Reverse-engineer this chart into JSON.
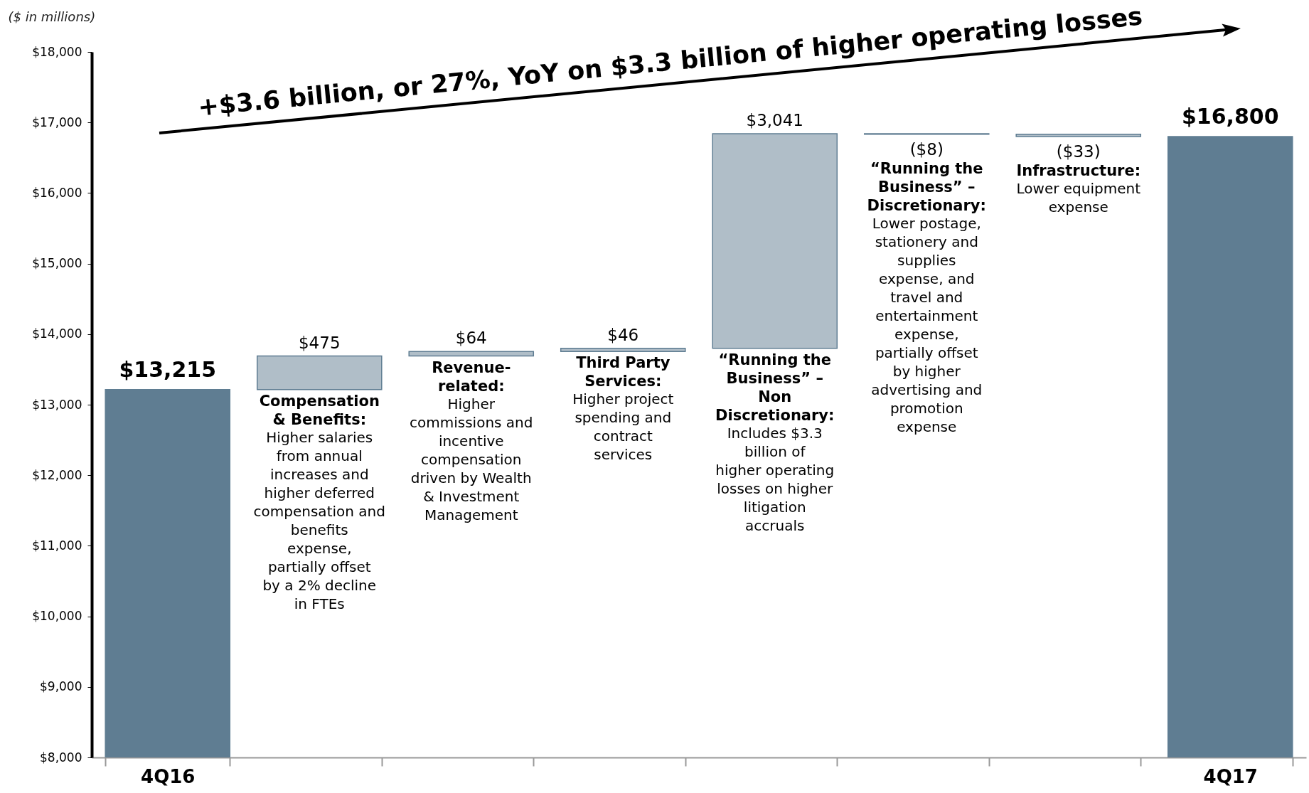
{
  "chart_data": {
    "type": "bar",
    "title": "+$3.6 billion, or 27%, YoY on $3.3 billion of higher operating losses",
    "ylabel": "($ in millions)",
    "categories": [
      "4Q16",
      null,
      null,
      null,
      null,
      null,
      null,
      "4Q17"
    ],
    "values": [
      13215,
      475,
      64,
      46,
      3041,
      -8,
      -33,
      16800
    ],
    "base": [
      null,
      13215,
      13690,
      13754,
      13800,
      16841,
      16833,
      null
    ],
    "colors": [
      "#5f7d92",
      "#b0bec8",
      "#b0bec8",
      "#b0bec8",
      "#b0bec8",
      "#b0bec8",
      "#b0bec8",
      "#5f7d92"
    ],
    "value_labels": [
      "$13,215",
      "$475",
      "$64",
      "$46",
      "$3,041",
      "($8)",
      "($33)",
      "$16,800"
    ],
    "ylim": [
      8000,
      18000
    ],
    "yticks": [
      {
        "value": 8000,
        "label": "$8,000"
      },
      {
        "value": 9000,
        "label": "$9,000"
      },
      {
        "value": 10000,
        "label": "$10,000"
      },
      {
        "value": 11000,
        "label": "$11,000"
      },
      {
        "value": 12000,
        "label": "$12,000"
      },
      {
        "value": 13000,
        "label": "$13,000"
      },
      {
        "value": 14000,
        "label": "$14,000"
      },
      {
        "value": 15000,
        "label": "$15,000"
      },
      {
        "value": 16000,
        "label": "$16,000"
      },
      {
        "value": 17000,
        "label": "$17,000"
      },
      {
        "value": 18000,
        "label": "$18,000"
      }
    ],
    "annotations": [
      "Compensation & Benefits:",
      "Higher salaries from annual increases and higher deferred compensation and benefits expense, partially offset by a 2% decline in FTEs",
      "Revenue-related:",
      "Higher commissions and incentive compensation driven by Wealth & Investment Management",
      "Third Party Services:",
      "Higher project spending and contract services",
      "“Running the Business” – Non Discretionary:",
      "Includes $3.3 billion of higher operating losses on higher litigation accruals",
      "“Running the Business” – Discretionary:",
      "Lower postage, stationery and supplies expense, and travel and entertainment expense, partially offset by higher advertising and promotion expense",
      "Infrastructure:",
      "Lower equipment expense"
    ]
  }
}
